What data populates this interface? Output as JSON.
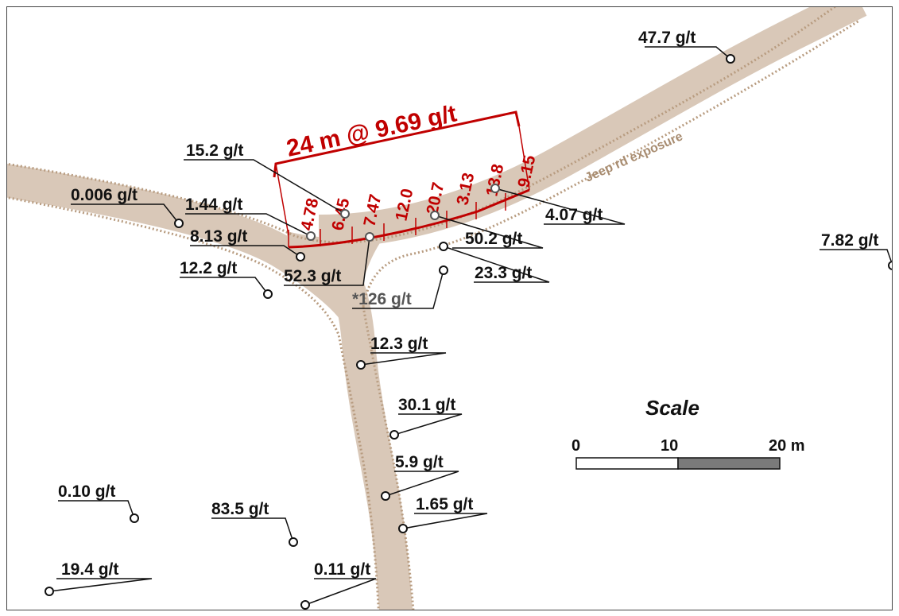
{
  "road_label": "Jeep rd exposure",
  "channel": {
    "headline": "24 m @ 9.69 g/t",
    "values": [
      "4.78",
      "6.45",
      "7.47",
      "12.0",
      "20.7",
      "3.13",
      "13.8",
      "9.15"
    ]
  },
  "samples": [
    {
      "label": "47.7 g/t"
    },
    {
      "label": "15.2 g/t"
    },
    {
      "label": "0.006 g/t"
    },
    {
      "label": "1.44 g/t"
    },
    {
      "label": "8.13 g/t"
    },
    {
      "label": "12.2 g/t"
    },
    {
      "label": "52.3 g/t"
    },
    {
      "label": "*126 g/t"
    },
    {
      "label": "4.07 g/t"
    },
    {
      "label": "50.2 g/t"
    },
    {
      "label": "23.3 g/t"
    },
    {
      "label": "7.82 g/t"
    },
    {
      "label": "12.3 g/t"
    },
    {
      "label": "30.1 g/t"
    },
    {
      "label": "5.9 g/t"
    },
    {
      "label": "1.65 g/t"
    },
    {
      "label": "0.10 g/t"
    },
    {
      "label": "83.5 g/t"
    },
    {
      "label": "19.4 g/t"
    },
    {
      "label": "0.11 g/t"
    }
  ],
  "scale": {
    "title": "Scale",
    "ticks": [
      "0",
      "10",
      "20 m"
    ]
  },
  "colors": {
    "road": "#d9c8b8",
    "road_dots": "#b89c80",
    "channel": "#c00000",
    "scale_dark": "#7a7a7a"
  }
}
